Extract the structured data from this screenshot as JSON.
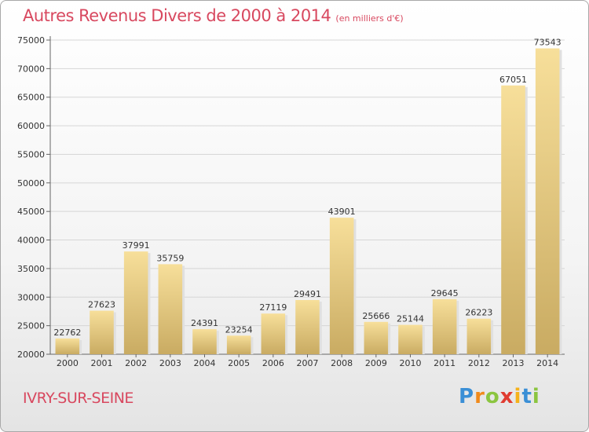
{
  "chart_data": {
    "type": "bar",
    "title": "Autres Revenus Divers de 2000 à 2014",
    "subtitle": "(en milliers d'€)",
    "categories": [
      "2000",
      "2001",
      "2002",
      "2003",
      "2004",
      "2005",
      "2006",
      "2007",
      "2008",
      "2009",
      "2010",
      "2011",
      "2012",
      "2013",
      "2014"
    ],
    "values": [
      22762,
      27623,
      37991,
      35759,
      24391,
      23254,
      27119,
      29491,
      43901,
      25666,
      25144,
      29645,
      26223,
      67051,
      73543
    ],
    "ylim": [
      20000,
      75000
    ],
    "yticks": [
      20000,
      25000,
      30000,
      35000,
      40000,
      45000,
      50000,
      55000,
      60000,
      65000,
      70000,
      75000
    ],
    "grid": true,
    "bar_color": "#e6c77d"
  },
  "footer": {
    "city": "IVRY-SUR-SEINE",
    "logo": [
      {
        "ch": "P",
        "color": "#3a8fd6"
      },
      {
        "ch": "r",
        "color": "#f08a1c"
      },
      {
        "ch": "o",
        "color": "#8bc540"
      },
      {
        "ch": "x",
        "color": "#e03c31"
      },
      {
        "ch": "i",
        "color": "#f5b21a"
      },
      {
        "ch": "t",
        "color": "#3a8fd6"
      },
      {
        "ch": "i",
        "color": "#8bc540"
      }
    ]
  }
}
